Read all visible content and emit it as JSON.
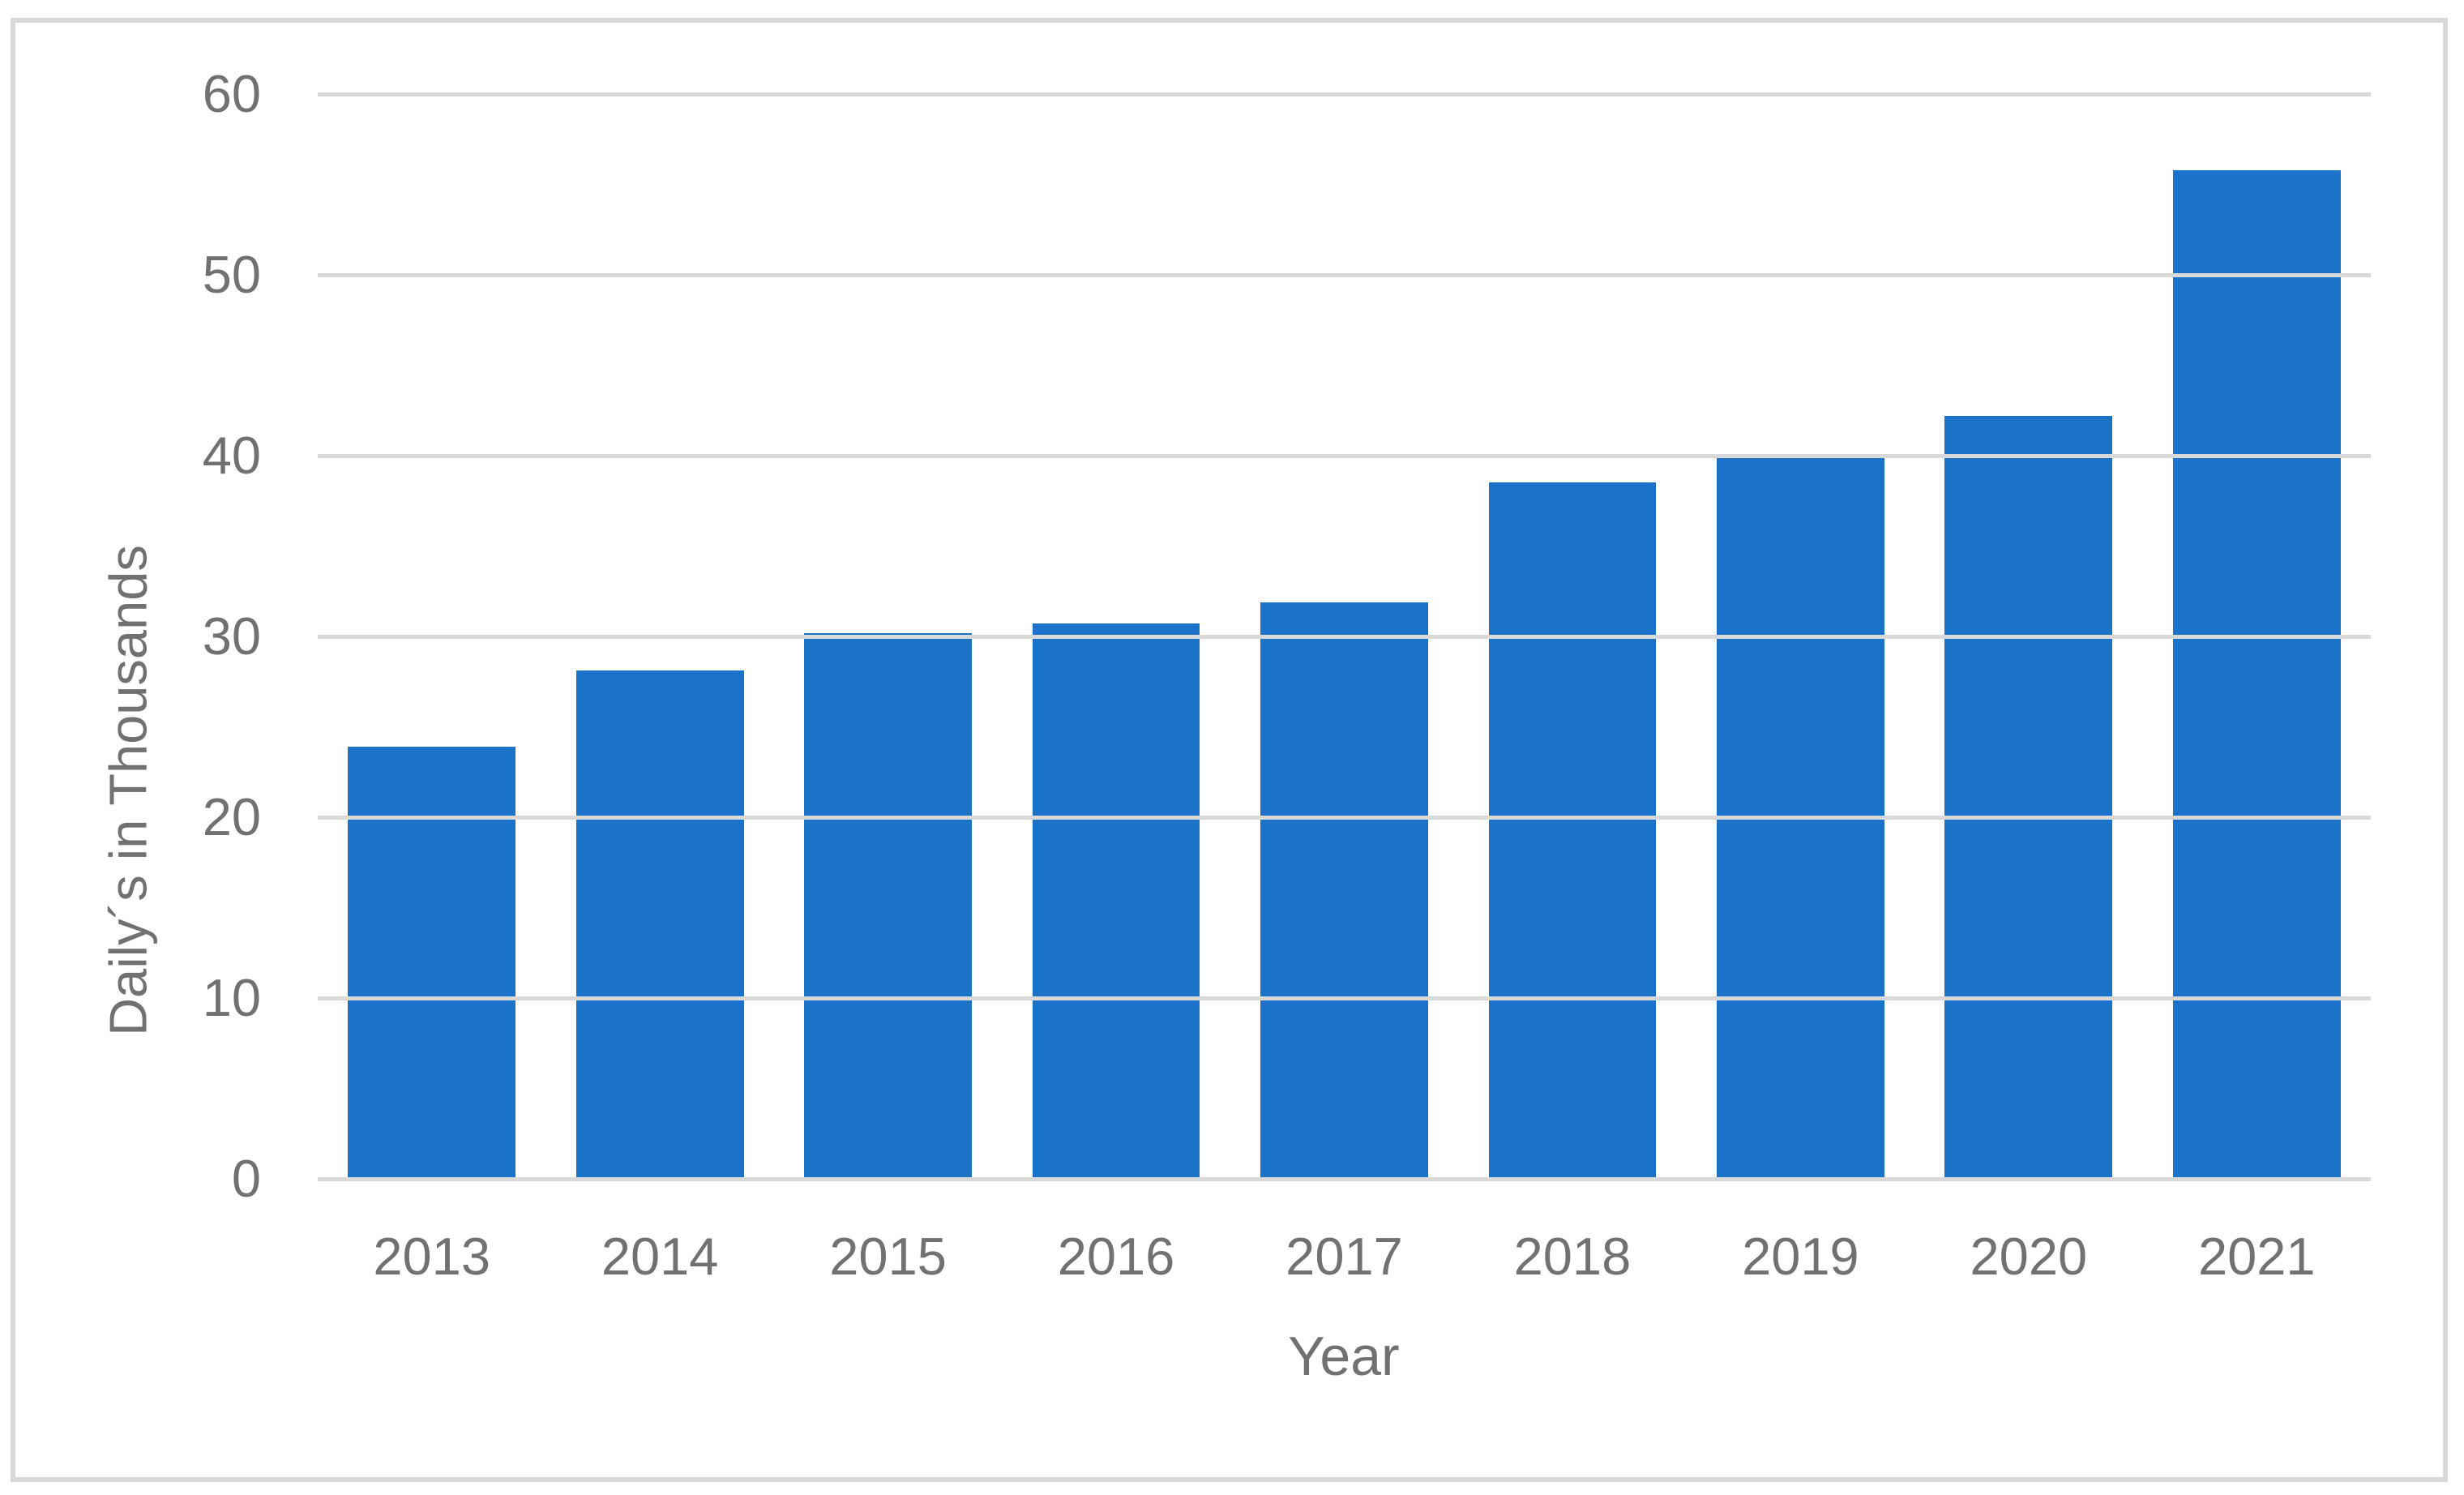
{
  "chart_data": {
    "type": "bar",
    "title": "",
    "categories": [
      "2013",
      "2014",
      "2015",
      "2016",
      "2017",
      "2018",
      "2019",
      "2020",
      "2021"
    ],
    "values": [
      23.9,
      28.1,
      30.2,
      30.7,
      31.9,
      38.5,
      40.1,
      42.2,
      55.8
    ],
    "series_count": 1,
    "xlabel": "Year",
    "ylabel": "Daily´s in Thousands",
    "y_ticks": [
      0,
      10,
      20,
      30,
      40,
      50,
      60
    ],
    "ylim": [
      0,
      60
    ],
    "grid": "horizontal",
    "legend": "none",
    "colors": {
      "bar": "#1A73C8",
      "gridline": "#D9D9D9",
      "axis_line": "#D9D9D9",
      "frame_border": "#D9D9D9",
      "label_text": "#717171",
      "background": "#FFFFFF"
    }
  }
}
